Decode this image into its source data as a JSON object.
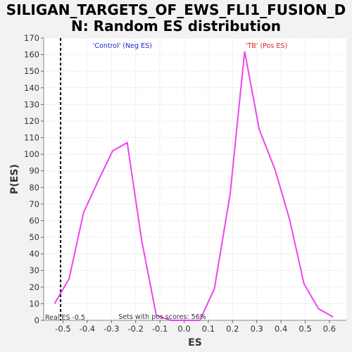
{
  "chart_data": {
    "type": "line",
    "title_lines": [
      "SILIGAN_TARGETS_OF_EWS_FLI1_FUSION_D",
      "N: Random ES distribution"
    ],
    "xlabel": "ES",
    "ylabel": "P(ES)",
    "xlim": [
      -0.58,
      0.67
    ],
    "ylim": [
      0,
      170
    ],
    "xticks": [
      -0.5,
      -0.4,
      -0.3,
      -0.2,
      -0.1,
      0.0,
      0.1,
      0.2,
      0.3,
      0.4,
      0.5,
      0.6
    ],
    "xtick_labels": [
      "-0.5",
      "-0.4",
      "-0.3",
      "-0.2",
      "-0.1",
      "0.0",
      "0.1",
      "0.2",
      "0.3",
      "0.4",
      "0.5",
      "0.6"
    ],
    "yticks": [
      0,
      10,
      20,
      30,
      40,
      50,
      60,
      70,
      80,
      90,
      100,
      110,
      120,
      130,
      140,
      150,
      160,
      170
    ],
    "ytick_labels": [
      "0",
      "10",
      "20",
      "30",
      "40",
      "50",
      "60",
      "70",
      "80",
      "90",
      "100",
      "110",
      "120",
      "130",
      "140",
      "150",
      "160",
      "170"
    ],
    "grid": true,
    "series": [
      {
        "color": "#ee44ee",
        "x": [
          -0.535,
          -0.475,
          -0.415,
          -0.355,
          -0.295,
          -0.235,
          -0.175,
          -0.115,
          -0.055,
          0.005,
          0.065,
          0.125,
          0.19,
          0.25,
          0.31,
          0.375,
          0.435,
          0.495,
          0.555,
          0.615
        ],
        "y": [
          10,
          25,
          65,
          84,
          102,
          107,
          48,
          3,
          0,
          0,
          0,
          19,
          76,
          162,
          115,
          91,
          61,
          22,
          7,
          2
        ]
      }
    ],
    "real_es": -0.51,
    "annotations": {
      "neg_label": "'Control' (Neg ES)",
      "pos_label": "'TB' (Pos ES)",
      "real_es_label": "Real ES -0.5",
      "pos_scores_label": "Sets with pos scores: 56%"
    },
    "colors": {
      "background": "#f2f2f2",
      "plot_background": "#ffffff",
      "line": "#ee44ee",
      "neg_label": "#2222cc",
      "pos_label": "#dd2222",
      "grid": "#e4e4e4"
    }
  }
}
